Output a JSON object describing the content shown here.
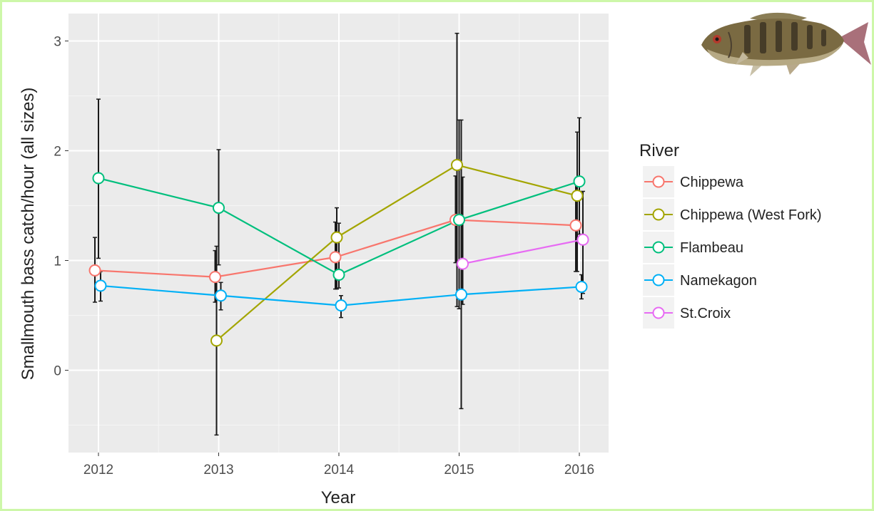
{
  "chart_data": {
    "type": "line",
    "xlabel": "Year",
    "ylabel": "Smallmouth bass catch/hour (all sizes)",
    "x": [
      "2012",
      "2013",
      "2014",
      "2015",
      "2016"
    ],
    "ylim": [
      -0.75,
      3.25
    ],
    "yticks": [
      "0",
      "1",
      "2",
      "3"
    ],
    "grid": true,
    "legend": {
      "title": "River",
      "position": "right"
    },
    "series": [
      {
        "name": "Chippewa",
        "color": "#f8766d",
        "values": [
          0.91,
          0.85,
          1.03,
          1.37,
          1.32
        ],
        "lower": [
          0.62,
          0.62,
          0.74,
          0.98,
          0.9
        ],
        "upper": [
          1.21,
          1.09,
          1.35,
          1.77,
          1.72
        ]
      },
      {
        "name": "Chippewa (West Fork)",
        "color": "#a3a500",
        "values": [
          null,
          0.27,
          1.21,
          1.87,
          1.59
        ],
        "lower": [
          null,
          -0.59,
          0.74,
          0.58,
          0.9
        ],
        "upper": [
          null,
          1.13,
          1.48,
          3.07,
          2.17
        ]
      },
      {
        "name": "Flambeau",
        "color": "#00bf7d",
        "values": [
          1.75,
          1.48,
          0.87,
          1.37,
          1.72
        ],
        "lower": [
          1.02,
          0.96,
          0.75,
          0.56,
          1.24
        ],
        "upper": [
          2.47,
          2.01,
          1.34,
          2.28,
          2.3
        ]
      },
      {
        "name": "Namekagon",
        "color": "#00b0f6",
        "values": [
          0.77,
          0.68,
          0.59,
          0.69,
          0.76
        ],
        "lower": [
          0.63,
          0.55,
          0.48,
          -0.35,
          0.65
        ],
        "upper": [
          0.9,
          0.8,
          0.68,
          2.28,
          0.87
        ]
      },
      {
        "name": "St.Croix",
        "color": "#e76bf3",
        "values": [
          null,
          null,
          null,
          0.97,
          1.19
        ],
        "lower": [
          null,
          null,
          null,
          0.6,
          0.7
        ],
        "upper": [
          null,
          null,
          null,
          1.76,
          1.63
        ]
      }
    ]
  },
  "icons": {
    "fish": "smallmouth-bass-icon"
  }
}
